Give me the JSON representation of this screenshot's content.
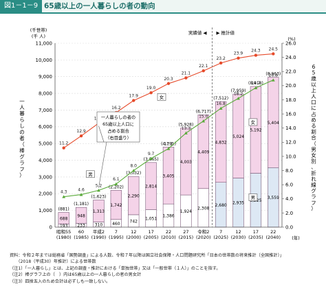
{
  "header": {
    "figure_no": "図1－1－9",
    "title": "65歳以上の一人暮らしの者の動向"
  },
  "chart_data": {
    "type": "bar+line",
    "categories": [
      {
        "era": "昭和55",
        "year": "(1980)"
      },
      {
        "era": "60",
        "year": "(1985)"
      },
      {
        "era": "平成2",
        "year": "(1990)"
      },
      {
        "era": "7",
        "year": "(1995)"
      },
      {
        "era": "12",
        "year": "(2000)"
      },
      {
        "era": "17",
        "year": "(2005)"
      },
      {
        "era": "22",
        "year": "(2010)"
      },
      {
        "era": "27",
        "year": "(2015)"
      },
      {
        "era": "令和2",
        "year": "(2020)"
      },
      {
        "era": "7",
        "year": "(2025)"
      },
      {
        "era": "12",
        "year": "(2030)"
      },
      {
        "era": "17",
        "year": "(2035)"
      },
      {
        "era": "22",
        "year": "(2040)"
      }
    ],
    "year_unit": "(年)",
    "bars": {
      "male": [
        193,
        233,
        310,
        460,
        742,
        1051,
        1386,
        1924,
        2308,
        2680,
        2935,
        3225,
        3559
      ],
      "female": [
        688,
        948,
        1313,
        1742,
        2290,
        2814,
        3405,
        4003,
        4409,
        4832,
        5024,
        5192,
        5404
      ],
      "male_labels": [
        "193",
        "233",
        "310",
        "460",
        "742",
        "1,051",
        "1,386",
        "1,924",
        "2,308",
        "2,680",
        "2,935",
        "3,225",
        "3,559"
      ],
      "female_labels": [
        "688",
        "948",
        "1,313",
        "1,742",
        "2,290",
        "2,814",
        "3,405",
        "4,003",
        "4,409",
        "4,832",
        "5,024",
        "5,192",
        "5,404"
      ],
      "totals": [
        "(881)",
        "(1,181)",
        "(1,623)",
        "(2,202)",
        "(3,032)",
        "(3,865)",
        "(4,791)",
        "(5,928)",
        "(6,717)",
        "(7,512)",
        "(7,959)",
        "(8,418)",
        "(8,963)"
      ],
      "male_label": "男",
      "female_label": "女",
      "colors": {
        "male_actual": "#ffffff",
        "female_actual": "#f4d3e8",
        "male_proj": "#dde8f4",
        "female_proj": "#f4d3e8",
        "edge": "#7a5a78"
      }
    },
    "lines": {
      "female": [
        11.2,
        12.9,
        14.7,
        16.2,
        17.9,
        19.0,
        20.3,
        21.1,
        22.1,
        23.2,
        23.9,
        24.3,
        24.5
      ],
      "male": [
        4.3,
        4.6,
        5.2,
        6.1,
        8.0,
        9.7,
        11.1,
        13.3,
        15.0,
        16.8,
        18.2,
        19.7,
        20.8
      ],
      "female_color": "#e64a2a",
      "male_color": "#5aaa3a"
    },
    "left_axis": {
      "unit_line1": "(千世帯)",
      "unit_line2": "(千 人)",
      "min": 0,
      "max": 11000,
      "step": 1000,
      "ticks": [
        "0",
        "1,000",
        "2,000",
        "3,000",
        "4,000",
        "5,000",
        "6,000",
        "7,000",
        "8,000",
        "9,000",
        "10,000",
        "11,000"
      ],
      "label": "一人暮らしの者（棒グラフ）"
    },
    "right_axis": {
      "unit": "(%)",
      "min": 0,
      "max": 26,
      "step": 2,
      "ticks": [
        "0.0",
        "2.0",
        "4.0",
        "6.0",
        "8.0",
        "10.0",
        "12.0",
        "14.0",
        "16.0",
        "18.0",
        "20.0",
        "22.0",
        "24.0",
        "26.0"
      ],
      "label": "65歳以上人口に占める割合（男女別、折れ線グラフ）"
    },
    "annotations": {
      "actual": "実績値",
      "projected": "推計値",
      "line_female": "女",
      "line_male": "男",
      "callout": [
        "一人暮らしの者の",
        "65歳以上人口に",
        "占める割合",
        "（右目盛り）"
      ]
    }
  },
  "notes": [
    "資料：令和２年までは総務省「国勢調査」による人数、令和７年以降は国立社会保障・人口問題研究所「日本の世帯数の将来推計（全国推計）」",
    "　　（2018（平成30）年推計）による世帯数",
    "（注1）「一人暮らし」とは、上記の調査・推計における「単独世帯」又は「一般世帯（１人）」のことを指す。",
    "（注2）棒グラフ上の（　）内は65歳以上の一人暮らしの者の男女計",
    "（注3）四捨五入のため合計は必ずしも一致しない。"
  ]
}
